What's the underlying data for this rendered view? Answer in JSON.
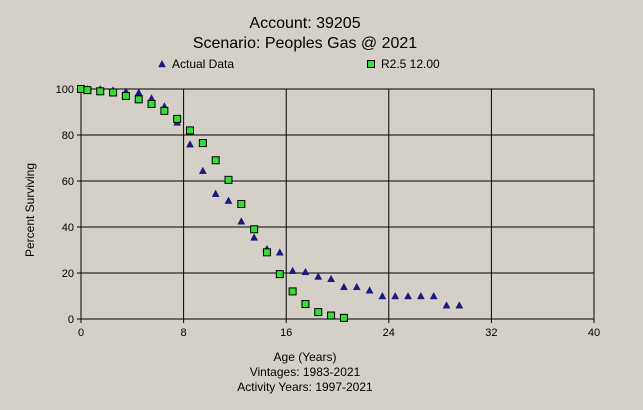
{
  "chart_data": {
    "type": "scatter",
    "title": "Account: 39205",
    "subtitle": "Scenario: Peoples Gas @ 2021",
    "xlabel": "Age (Years)",
    "ylabel": "Percent Surviving",
    "xlim": [
      0,
      40
    ],
    "ylim": [
      0,
      100
    ],
    "xticks": [
      0,
      8,
      16,
      24,
      32,
      40
    ],
    "yticks": [
      0,
      20,
      40,
      60,
      80,
      100
    ],
    "grid": true,
    "legend_position": "top",
    "notes": [
      "Vintages: 1983-2021",
      "Activity Years: 1997-2021"
    ],
    "colors": {
      "background": "#d4d0c8",
      "plot_area": "#d4d0c8",
      "actual": "#1a1a80",
      "fitted": "#33dd33"
    },
    "series": [
      {
        "name": "Actual Data",
        "marker": "triangle",
        "x": [
          0,
          0.5,
          1.5,
          2.5,
          3.5,
          4.5,
          5.5,
          6.5,
          7.5,
          8.5,
          9.5,
          10.5,
          11.5,
          12.5,
          13.5,
          14.5,
          15.5,
          16.5,
          17.5,
          18.5,
          19.5,
          20.5,
          21.5,
          22.5,
          23.5,
          24.5,
          25.5,
          26.5,
          27.5,
          28.5,
          29.5
        ],
        "y": [
          100,
          100,
          100,
          99.5,
          99,
          98.5,
          96,
          92.5,
          85.5,
          76,
          64.5,
          54.5,
          51.5,
          42.5,
          35.5,
          30.5,
          29,
          21,
          20.5,
          18.5,
          17.5,
          14,
          14,
          12.5,
          10,
          10,
          10,
          10,
          10,
          6,
          6
        ]
      },
      {
        "name": "R2.5 12.00",
        "marker": "square",
        "x": [
          0,
          0.5,
          1.5,
          2.5,
          3.5,
          4.5,
          5.5,
          6.5,
          7.5,
          8.5,
          9.5,
          10.5,
          11.5,
          12.5,
          13.5,
          14.5,
          15.5,
          16.5,
          17.5,
          18.5,
          19.5,
          20.5
        ],
        "y": [
          100,
          99.5,
          99,
          98.5,
          97,
          95.5,
          93.5,
          90.5,
          87,
          82,
          76.5,
          69,
          60.5,
          50,
          39,
          29,
          19.5,
          12,
          6.5,
          3,
          1.5,
          0.5
        ]
      }
    ]
  }
}
